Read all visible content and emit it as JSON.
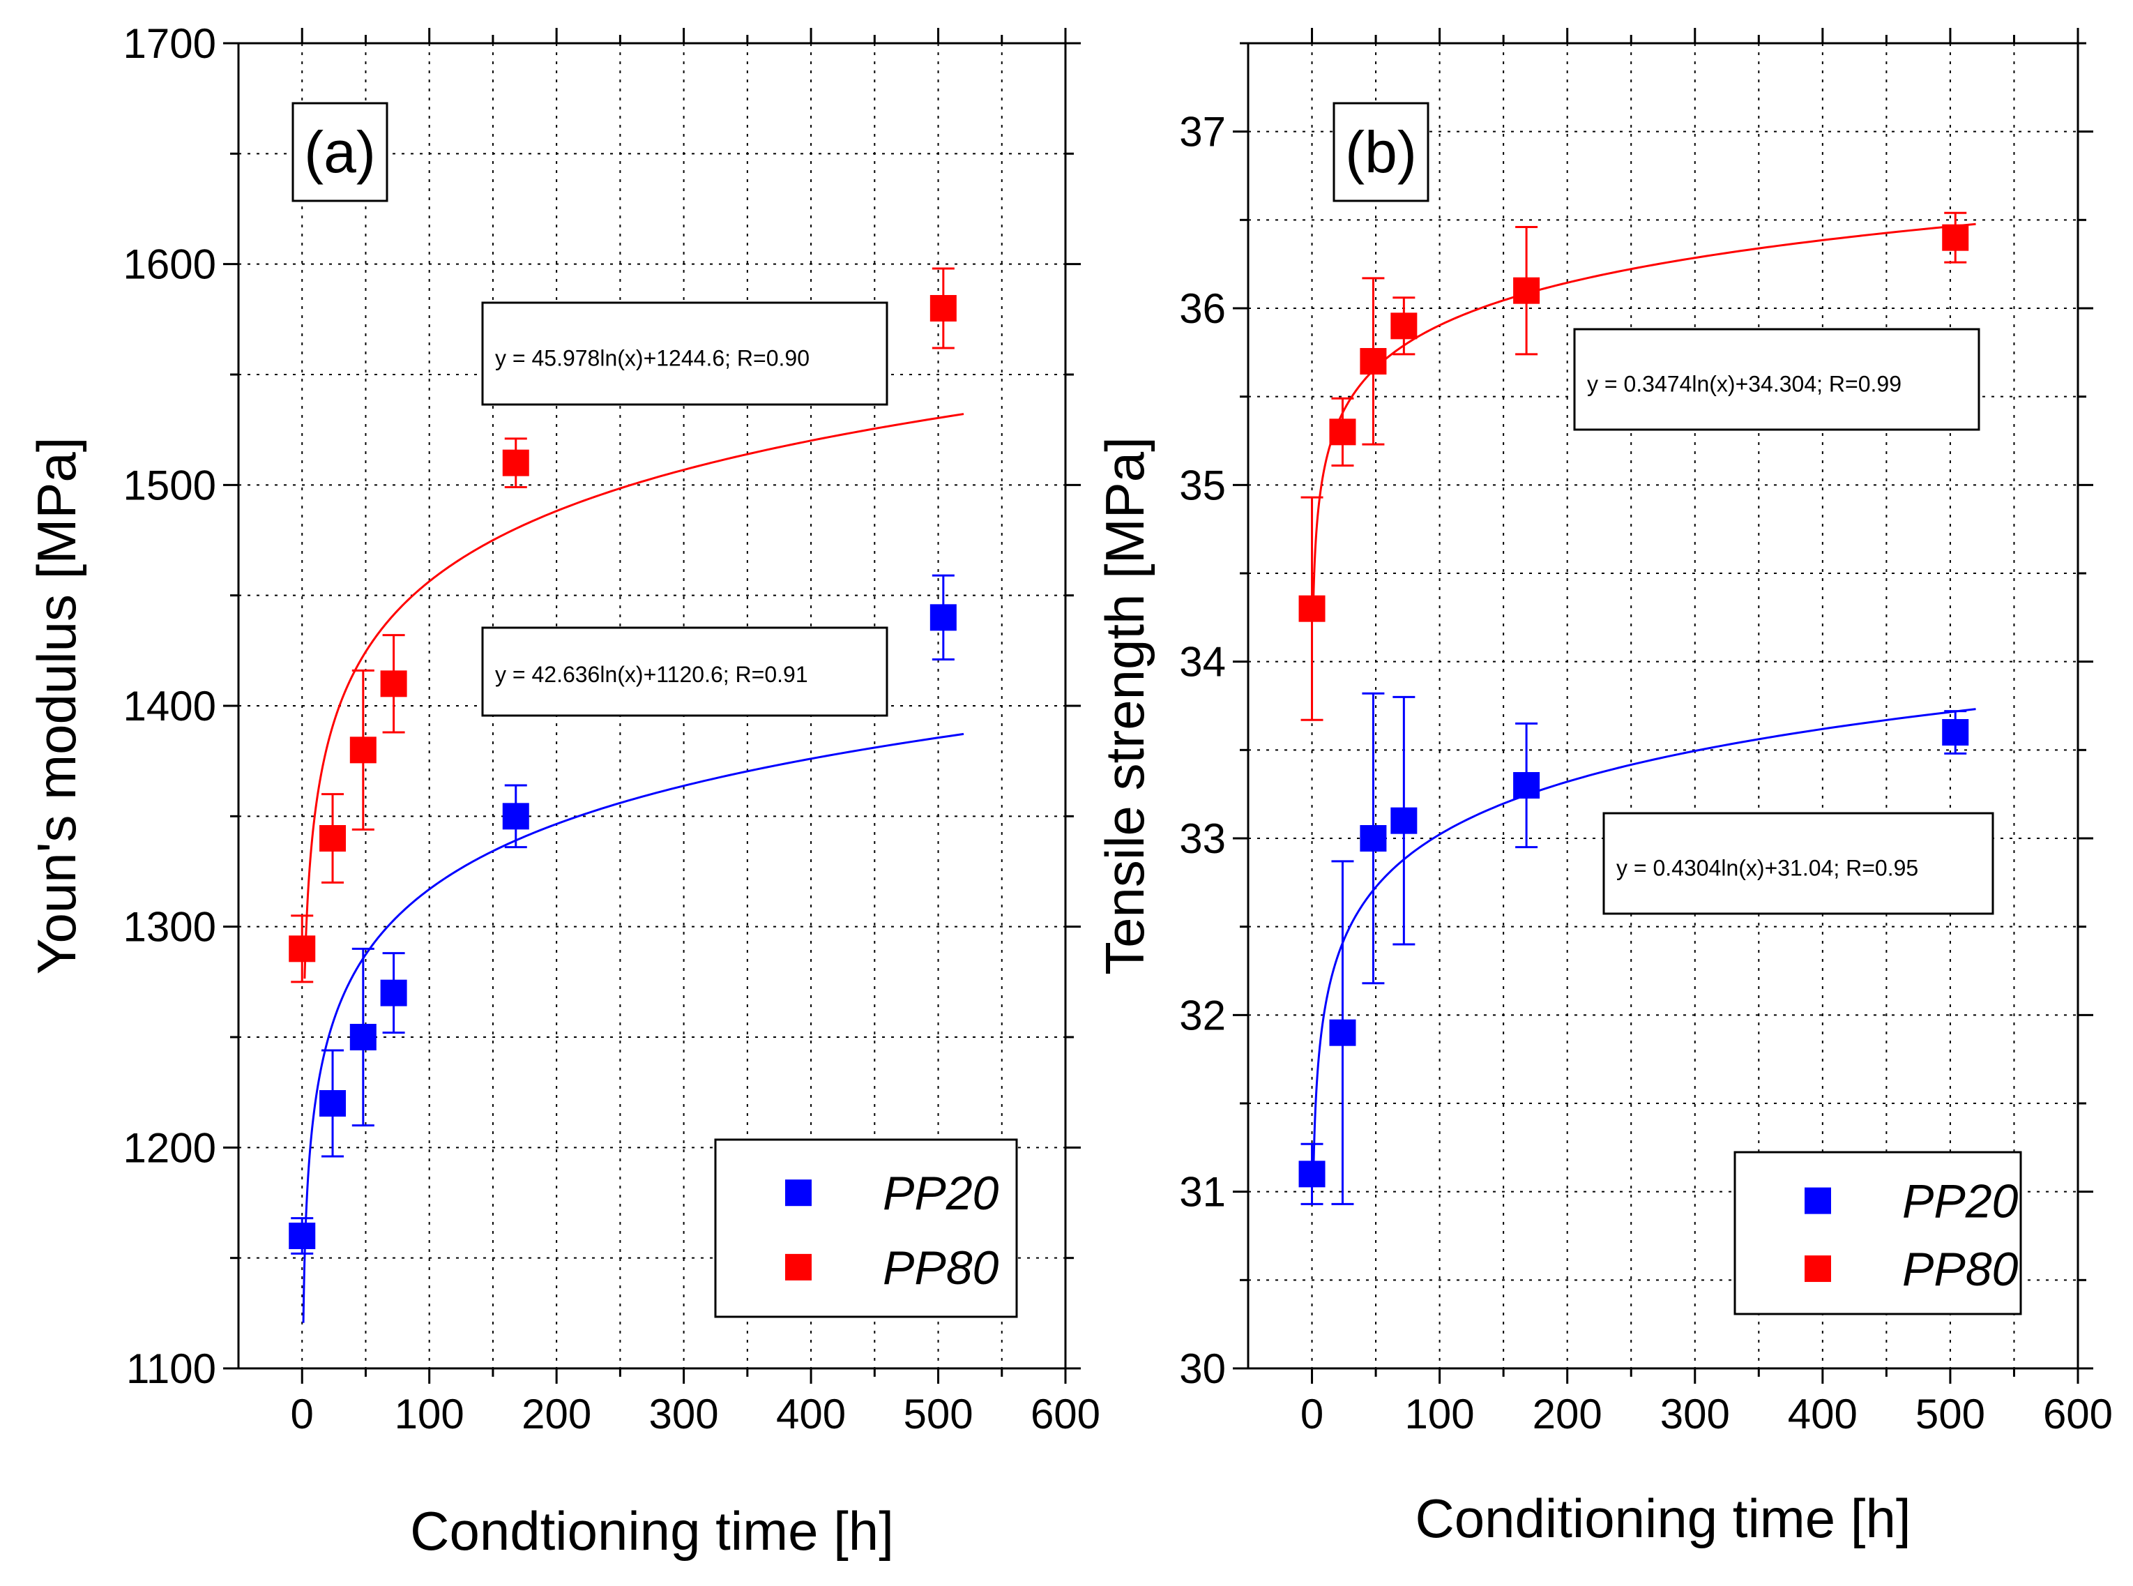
{
  "chart_data": [
    {
      "type": "scatter",
      "panel_label": "(a)",
      "xlabel": "Condtioning time [h]",
      "ylabel": "Youn's modulus [MPa]",
      "xlim": [
        -50,
        600
      ],
      "ylim": [
        1100,
        1700
      ],
      "x_ticks": [
        0,
        100,
        200,
        300,
        400,
        500,
        600
      ],
      "y_ticks": [
        1100,
        1200,
        1300,
        1400,
        1500,
        1600,
        1700
      ],
      "grid": true,
      "legend_position": "bottom-right",
      "series": [
        {
          "name": "PP20",
          "color": "#0000ff",
          "x": [
            0,
            24,
            48,
            72,
            168,
            504
          ],
          "y": [
            1160,
            1220,
            1250,
            1270,
            1350,
            1440
          ],
          "error": [
            8,
            24,
            40,
            18,
            14,
            19
          ],
          "fit": {
            "a": 42.636,
            "b": 1120.6,
            "x_min": 1,
            "x_max": 520
          },
          "equation": "y = 42.636ln(x)+1120.6; R=0.91"
        },
        {
          "name": "PP80",
          "color": "#ff0000",
          "x": [
            0,
            24,
            48,
            72,
            168,
            504
          ],
          "y": [
            1290,
            1340,
            1380,
            1410,
            1510,
            1580
          ],
          "error": [
            15,
            20,
            36,
            22,
            11,
            18
          ],
          "fit": {
            "a": 45.978,
            "b": 1244.6,
            "x_min": 2,
            "x_max": 520
          },
          "equation": "y = 45.978ln(x)+1244.6; R=0.90"
        }
      ]
    },
    {
      "type": "scatter",
      "panel_label": "(b)",
      "xlabel": "Conditioning time [h]",
      "ylabel": "Tensile strength [MPa]",
      "xlim": [
        -50,
        600
      ],
      "ylim": [
        30,
        37.5
      ],
      "x_ticks": [
        0,
        100,
        200,
        300,
        400,
        500,
        600
      ],
      "y_ticks": [
        30,
        31,
        32,
        33,
        34,
        35,
        36,
        37
      ],
      "grid": true,
      "legend_position": "bottom-right",
      "series": [
        {
          "name": "PP20",
          "color": "#0000ff",
          "x": [
            0,
            24,
            48,
            72,
            168,
            504
          ],
          "y": [
            31.1,
            31.9,
            33.0,
            33.1,
            33.3,
            33.6
          ],
          "error": [
            0.17,
            0.97,
            0.82,
            0.7,
            0.35,
            0.12
          ],
          "fit": {
            "a": 0.4304,
            "b": 31.04,
            "x_min": 1,
            "x_max": 520
          },
          "equation": "y = 0.4304ln(x)+31.04; R=0.95"
        },
        {
          "name": "PP80",
          "color": "#ff0000",
          "x": [
            0,
            24,
            48,
            72,
            168,
            504
          ],
          "y": [
            34.3,
            35.3,
            35.7,
            35.9,
            36.1,
            36.4
          ],
          "error": [
            0.63,
            0.19,
            0.47,
            0.16,
            0.36,
            0.14
          ],
          "fit": {
            "a": 0.3474,
            "b": 34.304,
            "x_min": 1,
            "x_max": 520
          },
          "equation": "y = 0.3474ln(x)+34.304; R=0.99"
        }
      ]
    }
  ]
}
